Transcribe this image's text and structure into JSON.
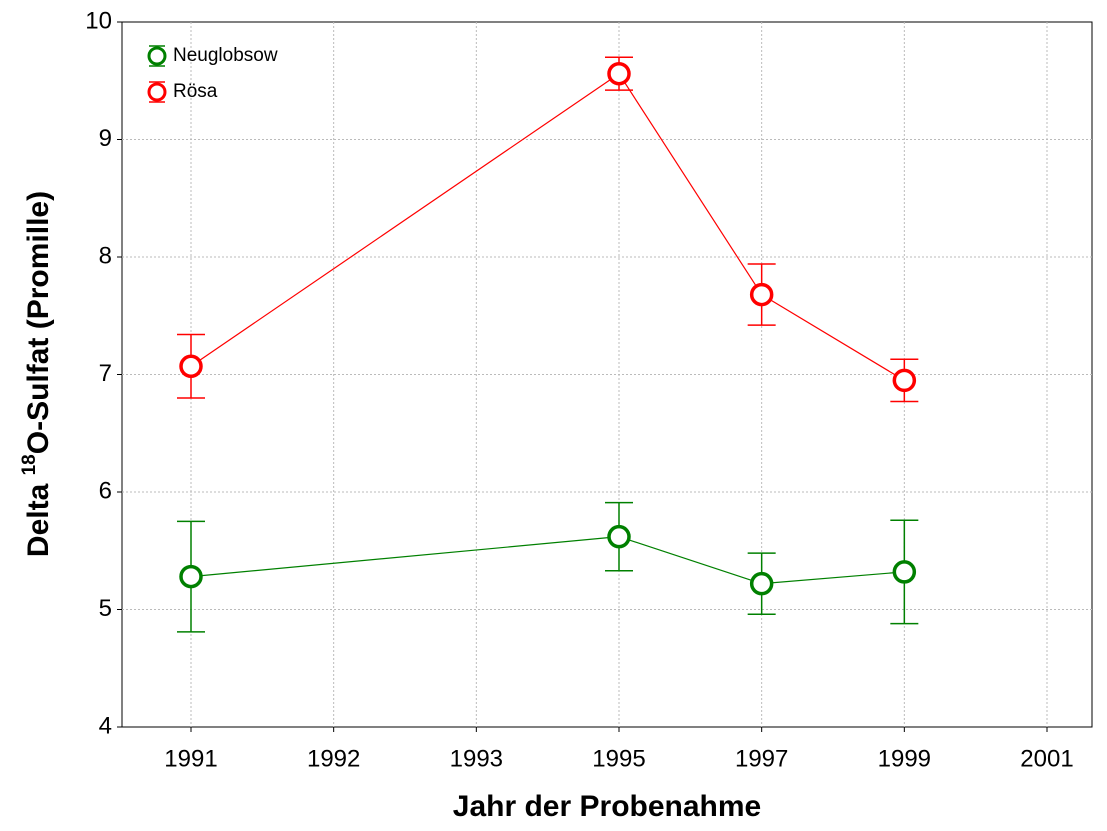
{
  "chart_data": {
    "type": "line",
    "x_label": "Jahr der Probenahme",
    "y_label": {
      "prefix": "Delta ",
      "sup": "18",
      "rest": "O-Sulfat (Promille)"
    },
    "categories": [
      "1991",
      "1992",
      "1993",
      "1995",
      "1997",
      "1999",
      "2001"
    ],
    "series": [
      {
        "name": "Neuglobsow",
        "color": "#008000",
        "values": [
          5.28,
          null,
          null,
          5.62,
          5.22,
          5.32,
          null
        ],
        "errors": [
          0.47,
          null,
          null,
          0.29,
          0.26,
          0.44,
          null
        ]
      },
      {
        "name": "Rösa",
        "color": "#ff0000",
        "values": [
          7.07,
          null,
          null,
          9.56,
          7.68,
          6.95,
          null
        ],
        "errors": [
          0.27,
          null,
          null,
          0.14,
          0.26,
          0.18,
          null
        ]
      }
    ],
    "ylim": [
      4,
      10
    ],
    "yticks": [
      4,
      5,
      6,
      7,
      8,
      9,
      10
    ],
    "grid": true,
    "legend": "top-left"
  }
}
